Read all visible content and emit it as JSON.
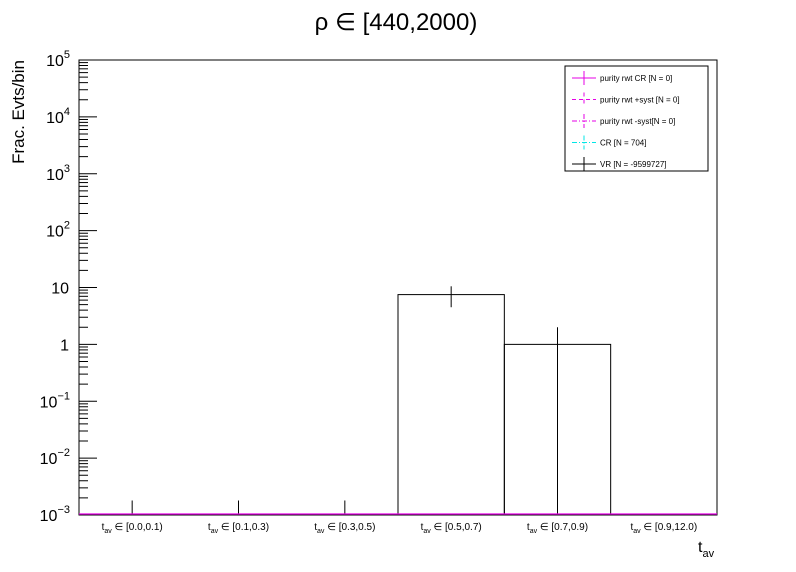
{
  "chart_data": {
    "type": "histogram",
    "title": "ρ ∈ [440,2000)",
    "xlabel": "t",
    "xlabel_sub": "av",
    "ylabel": "Frac. Evts/bin",
    "yscale": "log",
    "ylim": [
      0.001,
      100000
    ],
    "y_ticks": [
      {
        "base": "10",
        "exp": "−3",
        "value": 0.001
      },
      {
        "base": "10",
        "exp": "−2",
        "value": 0.01
      },
      {
        "base": "10",
        "exp": "−1",
        "value": 0.1
      },
      {
        "base": "1",
        "exp": "",
        "value": 1
      },
      {
        "base": "10",
        "exp": "",
        "value": 10
      },
      {
        "base": "10",
        "exp": "2",
        "value": 100
      },
      {
        "base": "10",
        "exp": "3",
        "value": 1000
      },
      {
        "base": "10",
        "exp": "4",
        "value": 10000
      },
      {
        "base": "10",
        "exp": "5",
        "value": 100000
      }
    ],
    "categories": [
      {
        "pre": "t",
        "sub": "av",
        "post": " ∈ [0.0,0.1)"
      },
      {
        "pre": "t",
        "sub": "av",
        "post": " ∈ [0.1,0.3)"
      },
      {
        "pre": "t",
        "sub": "av",
        "post": " ∈ [0.3,0.5)"
      },
      {
        "pre": "t",
        "sub": "av",
        "post": " ∈ [0.5,0.7)"
      },
      {
        "pre": "t",
        "sub": "av",
        "post": " ∈ [0.7,0.9)"
      },
      {
        "pre": "t",
        "sub": "av",
        "post": " ∈ [0.9,12.0)"
      }
    ],
    "legend_position": "top-right",
    "series": [
      {
        "name": "purity rwt CR [N = 0]",
        "color": "#e600e6",
        "style": "solid",
        "values": [
          0,
          0,
          0,
          0,
          0,
          0
        ]
      },
      {
        "name": "purity rwt +syst [N = 0]",
        "color": "#e600e6",
        "style": "dashed",
        "values": [
          0,
          0,
          0,
          0,
          0,
          0
        ]
      },
      {
        "name": "purity rwt -syst[N = 0]",
        "color": "#e600e6",
        "style": "dashdot",
        "values": [
          0,
          0,
          0,
          0,
          0,
          0
        ]
      },
      {
        "name": "CR [N = 704]",
        "color": "#00e6e6",
        "style": "dashdot",
        "values": [
          0,
          0,
          0,
          0,
          0,
          0
        ]
      },
      {
        "name": "VR [N = -9599727]",
        "color": "#000000",
        "style": "solid",
        "values": [
          0,
          0,
          0,
          7.5,
          1.0,
          0
        ],
        "errors": [
          {
            "lo": 0.001,
            "hi": 0.0018
          },
          {
            "lo": 0.001,
            "hi": 0.0018
          },
          {
            "lo": 0.001,
            "hi": 0.0018
          },
          {
            "lo": 4.5,
            "hi": 10.5
          },
          {
            "lo": 0.001,
            "hi": 2.0
          },
          null
        ]
      }
    ]
  }
}
